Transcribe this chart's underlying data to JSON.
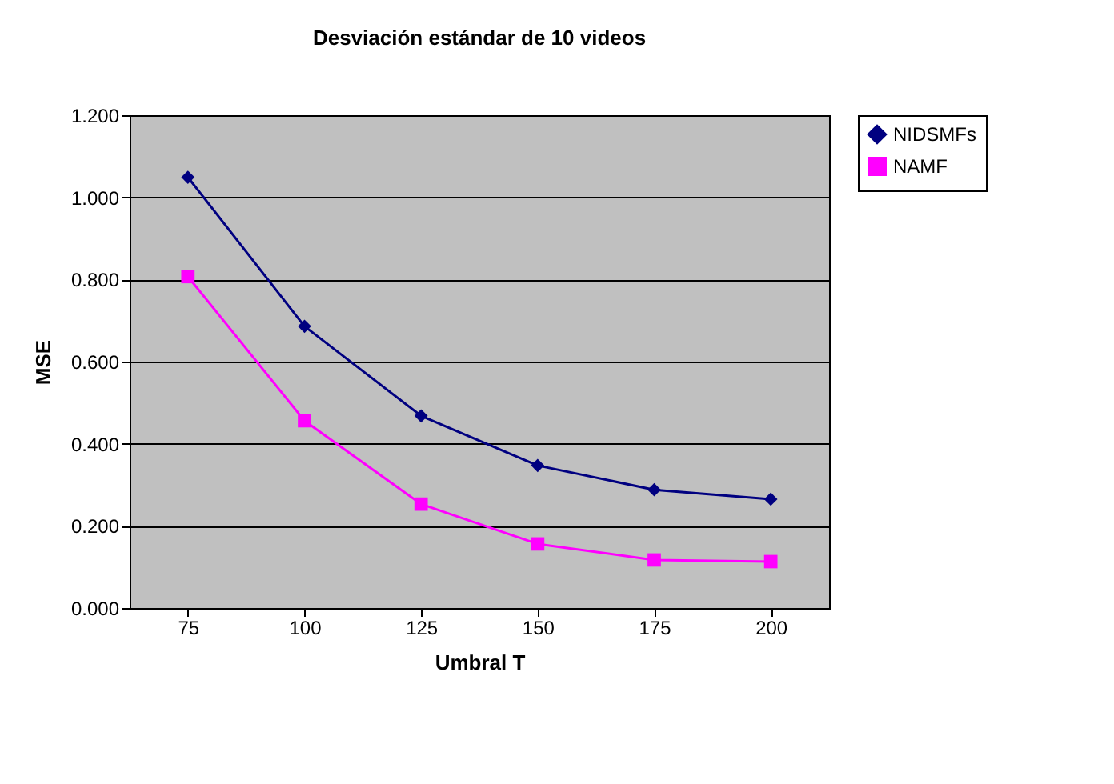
{
  "chart_data": {
    "type": "line",
    "title": "Desviación estándar de 10 videos",
    "xlabel": "Umbral T",
    "ylabel": "MSE",
    "categories": [
      "75",
      "100",
      "125",
      "150",
      "175",
      "200"
    ],
    "series": [
      {
        "name": "NIDSMFs",
        "color": "#000080",
        "marker": "diamond",
        "values": [
          1.049,
          0.686,
          0.468,
          0.347,
          0.288,
          0.265
        ]
      },
      {
        "name": "NAMF",
        "color": "#ff00ff",
        "marker": "square",
        "values": [
          0.807,
          0.456,
          0.253,
          0.156,
          0.117,
          0.113
        ]
      }
    ],
    "ylim": [
      0,
      1.2
    ],
    "yticks": [
      {
        "value": 0,
        "label": "0.000"
      },
      {
        "value": 0.2,
        "label": "0.200"
      },
      {
        "value": 0.4,
        "label": "0.400"
      },
      {
        "value": 0.6,
        "label": "0.600"
      },
      {
        "value": 0.8,
        "label": "0.800"
      },
      {
        "value": 1.0,
        "label": "1.000"
      },
      {
        "value": 1.2,
        "label": "1.200"
      }
    ],
    "grid": "y",
    "legend": "right",
    "line_style": "solid"
  }
}
